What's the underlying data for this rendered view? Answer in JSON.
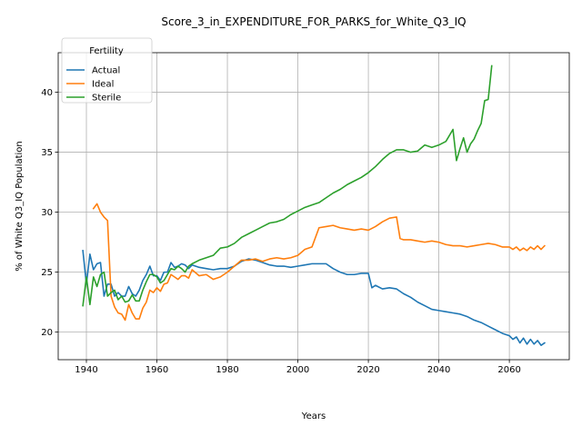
{
  "chart_data": {
    "type": "line",
    "title": "Score_3_in_EXPENDITURE_FOR_PARKS_for_White_Q3_IQ",
    "xlabel": "Years",
    "ylabel": "% of White Q3_IQ Population",
    "xlim": [
      1932,
      2077
    ],
    "ylim": [
      17.7,
      43.3
    ],
    "xticks": [
      1940,
      1960,
      1980,
      2000,
      2020,
      2040,
      2060
    ],
    "yticks": [
      20,
      25,
      30,
      35,
      40
    ],
    "grid": true,
    "legend": {
      "title": "Fertility",
      "placement": "top-left"
    },
    "series": [
      {
        "name": "Actual",
        "color": "#1f77b4",
        "x": [
          1939,
          1940,
          1941,
          1942,
          1943,
          1944,
          1945,
          1946,
          1947,
          1948,
          1949,
          1950,
          1951,
          1952,
          1953,
          1954,
          1955,
          1956,
          1957,
          1958,
          1959,
          1960,
          1961,
          1962,
          1963,
          1964,
          1965,
          1966,
          1967,
          1968,
          1969,
          1970,
          1972,
          1974,
          1976,
          1978,
          1980,
          1982,
          1984,
          1986,
          1988,
          1990,
          1992,
          1994,
          1996,
          1998,
          2000,
          2002,
          2004,
          2006,
          2008,
          2010,
          2012,
          2014,
          2016,
          2018,
          2020,
          2021,
          2022,
          2024,
          2026,
          2028,
          2030,
          2032,
          2034,
          2036,
          2038,
          2040,
          2042,
          2044,
          2046,
          2048,
          2050,
          2052,
          2054,
          2056,
          2058,
          2060,
          2061,
          2062,
          2063,
          2064,
          2065,
          2066,
          2067,
          2068,
          2069,
          2070
        ],
        "values": [
          26.8,
          24.0,
          26.5,
          25.2,
          25.7,
          25.8,
          23.0,
          24.0,
          24.0,
          23.0,
          23.3,
          23.0,
          23.0,
          23.8,
          23.2,
          23.0,
          23.5,
          24.3,
          24.8,
          25.5,
          24.7,
          24.7,
          24.3,
          25.0,
          25.0,
          25.8,
          25.4,
          25.5,
          25.7,
          25.6,
          25.3,
          25.6,
          25.4,
          25.3,
          25.2,
          25.3,
          25.3,
          25.5,
          25.9,
          26.1,
          26.0,
          25.8,
          25.6,
          25.5,
          25.5,
          25.4,
          25.5,
          25.6,
          25.7,
          25.7,
          25.7,
          25.3,
          25.0,
          24.8,
          24.8,
          24.9,
          24.9,
          23.7,
          23.9,
          23.6,
          23.7,
          23.6,
          23.2,
          22.9,
          22.5,
          22.2,
          21.9,
          21.8,
          21.7,
          21.6,
          21.5,
          21.3,
          21.0,
          20.8,
          20.5,
          20.2,
          19.9,
          19.7,
          19.4,
          19.6,
          19.1,
          19.5,
          19.0,
          19.4,
          19.0,
          19.3,
          18.9,
          19.1
        ]
      },
      {
        "name": "Ideal",
        "color": "#ff7f0e",
        "x": [
          1942,
          1943,
          1944,
          1945,
          1946,
          1947,
          1948,
          1949,
          1950,
          1951,
          1952,
          1953,
          1954,
          1955,
          1956,
          1957,
          1958,
          1959,
          1960,
          1961,
          1962,
          1963,
          1964,
          1965,
          1966,
          1967,
          1968,
          1969,
          1970,
          1972,
          1974,
          1976,
          1978,
          1980,
          1982,
          1984,
          1986,
          1988,
          1990,
          1992,
          1994,
          1996,
          1998,
          2000,
          2002,
          2004,
          2006,
          2008,
          2010,
          2012,
          2014,
          2016,
          2018,
          2020,
          2022,
          2024,
          2026,
          2028,
          2029,
          2030,
          2032,
          2034,
          2036,
          2038,
          2040,
          2042,
          2044,
          2046,
          2048,
          2050,
          2052,
          2054,
          2056,
          2058,
          2060,
          2061,
          2062,
          2063,
          2064,
          2065,
          2066,
          2067,
          2068,
          2069,
          2070
        ],
        "values": [
          30.3,
          30.7,
          30.0,
          29.6,
          29.3,
          23.0,
          22.1,
          21.6,
          21.5,
          21.0,
          22.3,
          21.6,
          21.1,
          21.1,
          22.0,
          22.5,
          23.5,
          23.3,
          23.7,
          23.4,
          24.0,
          24.1,
          24.8,
          24.6,
          24.4,
          24.7,
          24.7,
          24.5,
          25.2,
          24.7,
          24.8,
          24.4,
          24.6,
          25.0,
          25.5,
          26.0,
          26.0,
          26.1,
          25.9,
          26.1,
          26.2,
          26.1,
          26.2,
          26.4,
          26.9,
          27.1,
          28.7,
          28.8,
          28.9,
          28.7,
          28.6,
          28.5,
          28.6,
          28.5,
          28.8,
          29.2,
          29.5,
          29.6,
          27.8,
          27.7,
          27.7,
          27.6,
          27.5,
          27.6,
          27.5,
          27.3,
          27.2,
          27.2,
          27.1,
          27.2,
          27.3,
          27.4,
          27.3,
          27.1,
          27.1,
          26.9,
          27.1,
          26.8,
          27.0,
          26.8,
          27.1,
          26.9,
          27.2,
          26.9,
          27.2
        ]
      },
      {
        "name": "Sterile",
        "color": "#2ca02c",
        "x": [
          1939,
          1940,
          1941,
          1942,
          1943,
          1944,
          1945,
          1946,
          1947,
          1948,
          1949,
          1950,
          1951,
          1952,
          1953,
          1954,
          1955,
          1956,
          1957,
          1958,
          1959,
          1960,
          1961,
          1962,
          1963,
          1964,
          1965,
          1966,
          1967,
          1968,
          1969,
          1970,
          1972,
          1974,
          1976,
          1978,
          1980,
          1982,
          1984,
          1986,
          1988,
          1990,
          1992,
          1994,
          1996,
          1998,
          2000,
          2002,
          2004,
          2006,
          2008,
          2010,
          2012,
          2014,
          2016,
          2018,
          2020,
          2022,
          2024,
          2026,
          2028,
          2030,
          2032,
          2034,
          2036,
          2038,
          2040,
          2042,
          2044,
          2045,
          2046,
          2047,
          2048,
          2049,
          2050,
          2051,
          2052,
          2053,
          2054,
          2055
        ],
        "values": [
          22.2,
          24.6,
          22.3,
          24.6,
          23.8,
          24.8,
          25.0,
          23.0,
          23.3,
          23.5,
          22.7,
          23.0,
          22.5,
          22.6,
          23.1,
          22.6,
          22.6,
          23.5,
          24.2,
          24.8,
          24.8,
          24.6,
          24.1,
          24.3,
          24.8,
          25.3,
          25.2,
          25.5,
          25.3,
          25.0,
          25.5,
          25.7,
          26.0,
          26.2,
          26.4,
          27.0,
          27.1,
          27.4,
          27.9,
          28.2,
          28.5,
          28.8,
          29.1,
          29.2,
          29.4,
          29.8,
          30.1,
          30.4,
          30.6,
          30.8,
          31.2,
          31.6,
          31.9,
          32.3,
          32.6,
          32.9,
          33.3,
          33.8,
          34.4,
          34.9,
          35.2,
          35.2,
          35.0,
          35.1,
          35.6,
          35.4,
          35.6,
          35.9,
          36.9,
          34.3,
          35.3,
          36.2,
          35.0,
          35.7,
          36.1,
          36.8,
          37.4,
          39.3,
          39.4,
          42.2
        ]
      }
    ]
  }
}
